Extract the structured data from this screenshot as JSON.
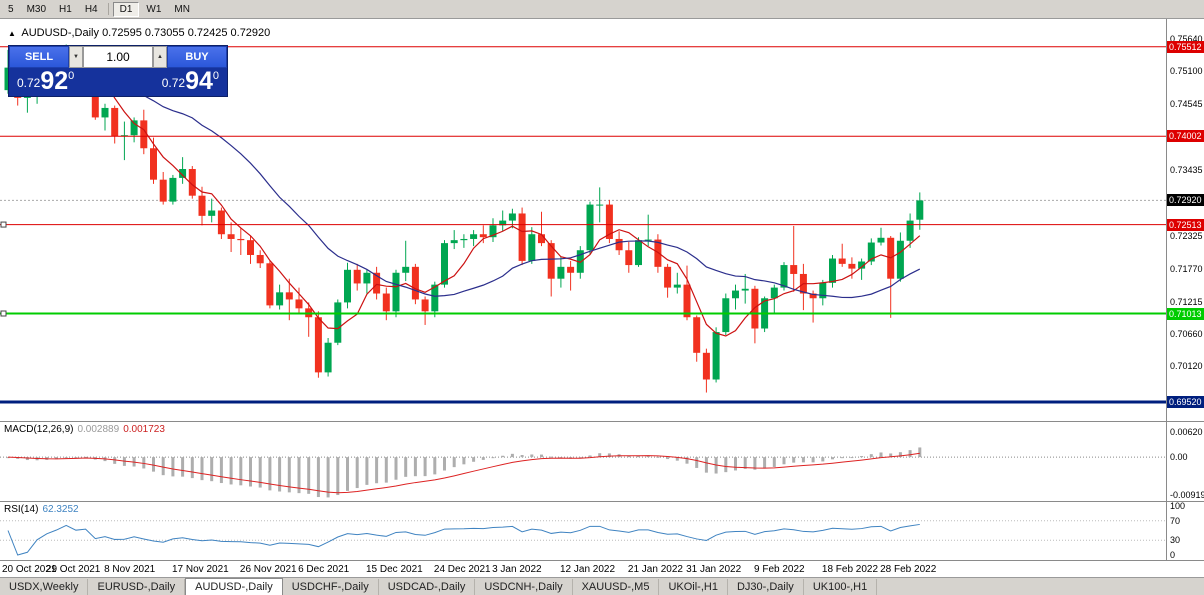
{
  "toolbar": {
    "items": [
      "5",
      "M30",
      "H1",
      "H4",
      "|",
      "D1",
      "W1",
      "MN"
    ],
    "active": "D1"
  },
  "chart_header": {
    "toggle_icon": "▲",
    "title": "AUDUSD-,Daily",
    "ohlc": "0.72595 0.73055 0.72425 0.72920"
  },
  "trade_panel": {
    "sell_label": "SELL",
    "buy_label": "BUY",
    "volume": "1.00",
    "spin_down": "▼",
    "spin_up": "▲",
    "bid": {
      "prefix": "0.72",
      "pips": "92",
      "frac": "0"
    },
    "ask": {
      "prefix": "0.72",
      "pips": "94",
      "frac": "0"
    }
  },
  "colors": {
    "candle_up": "#00a651",
    "candle_down": "#f1311f",
    "ma_fast": "#cc1111",
    "ma_slow": "#2b2e8c",
    "macd_hist": "#aeaeae",
    "macd_signal": "#dd2222",
    "rsi_line": "#3f83c1",
    "bid_dash": "#aaaaaa"
  },
  "chart_data": {
    "type": "candlestick",
    "symbol": "AUDUSD",
    "timeframe": "Daily",
    "price_top": 0.7598,
    "price_bottom": 0.692,
    "ma_fast_period": 5,
    "ma_slow_period": 20,
    "candles": [
      [
        0.7478,
        0.7546,
        0.7472,
        0.7516
      ],
      [
        0.7516,
        0.7525,
        0.7452,
        0.7465
      ],
      [
        0.7465,
        0.7485,
        0.744,
        0.7468
      ],
      [
        0.7468,
        0.75,
        0.7455,
        0.7488
      ],
      [
        0.7488,
        0.7527,
        0.748,
        0.7504
      ],
      [
        0.7504,
        0.7536,
        0.7487,
        0.7518
      ],
      [
        0.7518,
        0.7555,
        0.7506,
        0.7543
      ],
      [
        0.7543,
        0.7547,
        0.7496,
        0.7518
      ],
      [
        0.7518,
        0.7535,
        0.7492,
        0.7525
      ],
      [
        0.7525,
        0.7528,
        0.7428,
        0.7432
      ],
      [
        0.7432,
        0.7455,
        0.741,
        0.7448
      ],
      [
        0.7448,
        0.7452,
        0.7388,
        0.74
      ],
      [
        0.74,
        0.7425,
        0.736,
        0.7402
      ],
      [
        0.7402,
        0.7432,
        0.739,
        0.7427
      ],
      [
        0.7427,
        0.7445,
        0.737,
        0.738
      ],
      [
        0.738,
        0.7398,
        0.732,
        0.7327
      ],
      [
        0.7327,
        0.734,
        0.7285,
        0.729
      ],
      [
        0.729,
        0.7335,
        0.7285,
        0.733
      ],
      [
        0.733,
        0.7365,
        0.732,
        0.7345
      ],
      [
        0.7345,
        0.735,
        0.7295,
        0.73
      ],
      [
        0.73,
        0.7315,
        0.725,
        0.7266
      ],
      [
        0.7266,
        0.7295,
        0.7255,
        0.7275
      ],
      [
        0.7275,
        0.728,
        0.7227,
        0.7235
      ],
      [
        0.7235,
        0.7255,
        0.7205,
        0.7227
      ],
      [
        0.7227,
        0.7245,
        0.72,
        0.7225
      ],
      [
        0.7225,
        0.7232,
        0.7185,
        0.72
      ],
      [
        0.72,
        0.7208,
        0.7178,
        0.7186
      ],
      [
        0.7186,
        0.719,
        0.711,
        0.7115
      ],
      [
        0.7115,
        0.715,
        0.7108,
        0.7137
      ],
      [
        0.7137,
        0.716,
        0.709,
        0.7125
      ],
      [
        0.7125,
        0.7145,
        0.71,
        0.711
      ],
      [
        0.711,
        0.712,
        0.7062,
        0.7095
      ],
      [
        0.7095,
        0.7105,
        0.6993,
        0.7002
      ],
      [
        0.7002,
        0.706,
        0.6995,
        0.7052
      ],
      [
        0.7052,
        0.7125,
        0.7048,
        0.712
      ],
      [
        0.712,
        0.7187,
        0.711,
        0.7175
      ],
      [
        0.7175,
        0.7185,
        0.714,
        0.7152
      ],
      [
        0.7152,
        0.7175,
        0.7135,
        0.717
      ],
      [
        0.717,
        0.718,
        0.7125,
        0.7135
      ],
      [
        0.7135,
        0.7145,
        0.709,
        0.7105
      ],
      [
        0.7105,
        0.7175,
        0.7095,
        0.717
      ],
      [
        0.717,
        0.7224,
        0.7156,
        0.718
      ],
      [
        0.718,
        0.7185,
        0.7117,
        0.7125
      ],
      [
        0.7125,
        0.713,
        0.7082,
        0.7105
      ],
      [
        0.7105,
        0.7155,
        0.7095,
        0.715
      ],
      [
        0.715,
        0.7225,
        0.7145,
        0.722
      ],
      [
        0.722,
        0.7242,
        0.721,
        0.7225
      ],
      [
        0.7225,
        0.7235,
        0.7212,
        0.7227
      ],
      [
        0.7227,
        0.7242,
        0.7215,
        0.7235
      ],
      [
        0.7235,
        0.725,
        0.722,
        0.723
      ],
      [
        0.723,
        0.7262,
        0.7222,
        0.725
      ],
      [
        0.725,
        0.7275,
        0.724,
        0.7258
      ],
      [
        0.7258,
        0.7278,
        0.7245,
        0.727
      ],
      [
        0.727,
        0.728,
        0.7183,
        0.719
      ],
      [
        0.719,
        0.7247,
        0.7185,
        0.7235
      ],
      [
        0.7235,
        0.7273,
        0.7215,
        0.722
      ],
      [
        0.722,
        0.7225,
        0.713,
        0.716
      ],
      [
        0.716,
        0.7197,
        0.7145,
        0.718
      ],
      [
        0.718,
        0.719,
        0.714,
        0.717
      ],
      [
        0.717,
        0.7215,
        0.716,
        0.7208
      ],
      [
        0.7208,
        0.729,
        0.72,
        0.7285
      ],
      [
        0.7285,
        0.7314,
        0.7255,
        0.7285
      ],
      [
        0.7285,
        0.7293,
        0.722,
        0.7227
      ],
      [
        0.7227,
        0.724,
        0.72,
        0.7208
      ],
      [
        0.7208,
        0.7222,
        0.717,
        0.7183
      ],
      [
        0.7183,
        0.723,
        0.718,
        0.7225
      ],
      [
        0.7225,
        0.7268,
        0.7215,
        0.7226
      ],
      [
        0.7226,
        0.7235,
        0.717,
        0.718
      ],
      [
        0.718,
        0.7185,
        0.7128,
        0.7145
      ],
      [
        0.7145,
        0.717,
        0.7135,
        0.715
      ],
      [
        0.715,
        0.7182,
        0.709,
        0.7095
      ],
      [
        0.7095,
        0.7098,
        0.702,
        0.7035
      ],
      [
        0.7035,
        0.7042,
        0.6968,
        0.699
      ],
      [
        0.699,
        0.7078,
        0.6985,
        0.707
      ],
      [
        0.707,
        0.7135,
        0.7065,
        0.7127
      ],
      [
        0.7127,
        0.715,
        0.7108,
        0.714
      ],
      [
        0.714,
        0.7168,
        0.7118,
        0.7143
      ],
      [
        0.7143,
        0.7148,
        0.7051,
        0.7076
      ],
      [
        0.7076,
        0.713,
        0.707,
        0.7127
      ],
      [
        0.7127,
        0.715,
        0.71,
        0.7145
      ],
      [
        0.7145,
        0.7188,
        0.714,
        0.7183
      ],
      [
        0.7183,
        0.7249,
        0.7138,
        0.7168
      ],
      [
        0.7168,
        0.7185,
        0.7107,
        0.7135
      ],
      [
        0.7135,
        0.714,
        0.7086,
        0.7127
      ],
      [
        0.7127,
        0.7158,
        0.7115,
        0.7153
      ],
      [
        0.7153,
        0.72,
        0.7145,
        0.7194
      ],
      [
        0.7194,
        0.7219,
        0.718,
        0.7185
      ],
      [
        0.7185,
        0.7196,
        0.716,
        0.7177
      ],
      [
        0.7177,
        0.7194,
        0.7158,
        0.7189
      ],
      [
        0.7189,
        0.7228,
        0.7183,
        0.7221
      ],
      [
        0.7221,
        0.7246,
        0.7216,
        0.7229
      ],
      [
        0.7229,
        0.7232,
        0.7094,
        0.716
      ],
      [
        0.716,
        0.7238,
        0.7155,
        0.7224
      ],
      [
        0.7224,
        0.727,
        0.7212,
        0.7258
      ],
      [
        0.72595,
        0.73055,
        0.72425,
        0.7292
      ]
    ],
    "date_ticks": [
      {
        "i": 0,
        "label": "20 Oct 2021"
      },
      {
        "i": 7,
        "label": "29 Oct 2021"
      },
      {
        "i": 13,
        "label": "8 Nov 2021"
      },
      {
        "i": 20,
        "label": "17 Nov 2021"
      },
      {
        "i": 27,
        "label": "26 Nov 2021"
      },
      {
        "i": 33,
        "label": "6 Dec 2021"
      },
      {
        "i": 40,
        "label": "15 Dec 2021"
      },
      {
        "i": 47,
        "label": "24 Dec 2021"
      },
      {
        "i": 53,
        "label": "3 Jan 2022"
      },
      {
        "i": 60,
        "label": "12 Jan 2022"
      },
      {
        "i": 67,
        "label": "21 Jan 2022"
      },
      {
        "i": 73,
        "label": "31 Jan 2022"
      },
      {
        "i": 80,
        "label": "9 Feb 2022"
      },
      {
        "i": 87,
        "label": "18 Feb 2022"
      },
      {
        "i": 93,
        "label": "28 Feb 2022"
      }
    ],
    "price_ticks": [
      "0.75640",
      "0.75100",
      "0.74545",
      "0.73435",
      "0.72325",
      "0.71770",
      "0.71215",
      "0.70660",
      "0.70120"
    ],
    "hlines": [
      {
        "price": 0.75512,
        "label": "0.75512",
        "color": "#dd0000",
        "width": 1,
        "handle": false
      },
      {
        "price": 0.74002,
        "label": "0.74002",
        "color": "#dd0000",
        "width": 1,
        "handle": false
      },
      {
        "price": 0.72513,
        "label": "0.72513",
        "color": "#dd0000",
        "width": 1,
        "handle": true
      },
      {
        "price": 0.71013,
        "label": "0.71013",
        "color": "#00cc00",
        "width": 2,
        "handle": true
      },
      {
        "price": 0.6952,
        "label": "0.69520",
        "color": "#001f7e",
        "width": 3,
        "handle": false
      }
    ],
    "bid": {
      "price": 0.7292,
      "label": "0.72920",
      "badge_color": "#000000"
    }
  },
  "macd": {
    "label": "MACD(12,26,9)",
    "value_main": "0.002889",
    "value_signal": "0.001723",
    "params": {
      "fast": 12,
      "slow": 26,
      "signal": 9
    },
    "axis": [
      {
        "v": 0.0062,
        "label": "0.00620"
      },
      {
        "v": 0,
        "label": "0.00"
      },
      {
        "v": -0.00919,
        "label": "-0.00919"
      }
    ]
  },
  "rsi": {
    "label": "RSI(14)",
    "value": "62.3252",
    "period": 14,
    "levels": [
      70,
      30
    ],
    "axis": [
      {
        "v": 100,
        "label": "100"
      },
      {
        "v": 70,
        "label": "70"
      },
      {
        "v": 30,
        "label": "30"
      },
      {
        "v": 0,
        "label": "0"
      }
    ]
  },
  "tabs": {
    "items": [
      "USDX,Weekly",
      "EURUSD-,Daily",
      "AUDUSD-,Daily",
      "USDCHF-,Daily",
      "USDCAD-,Daily",
      "USDCNH-,Daily",
      "XAUUSD-,M5",
      "UKOil-,H1",
      "DJ30-,Daily",
      "UK100-,H1"
    ],
    "active_index": 2
  }
}
